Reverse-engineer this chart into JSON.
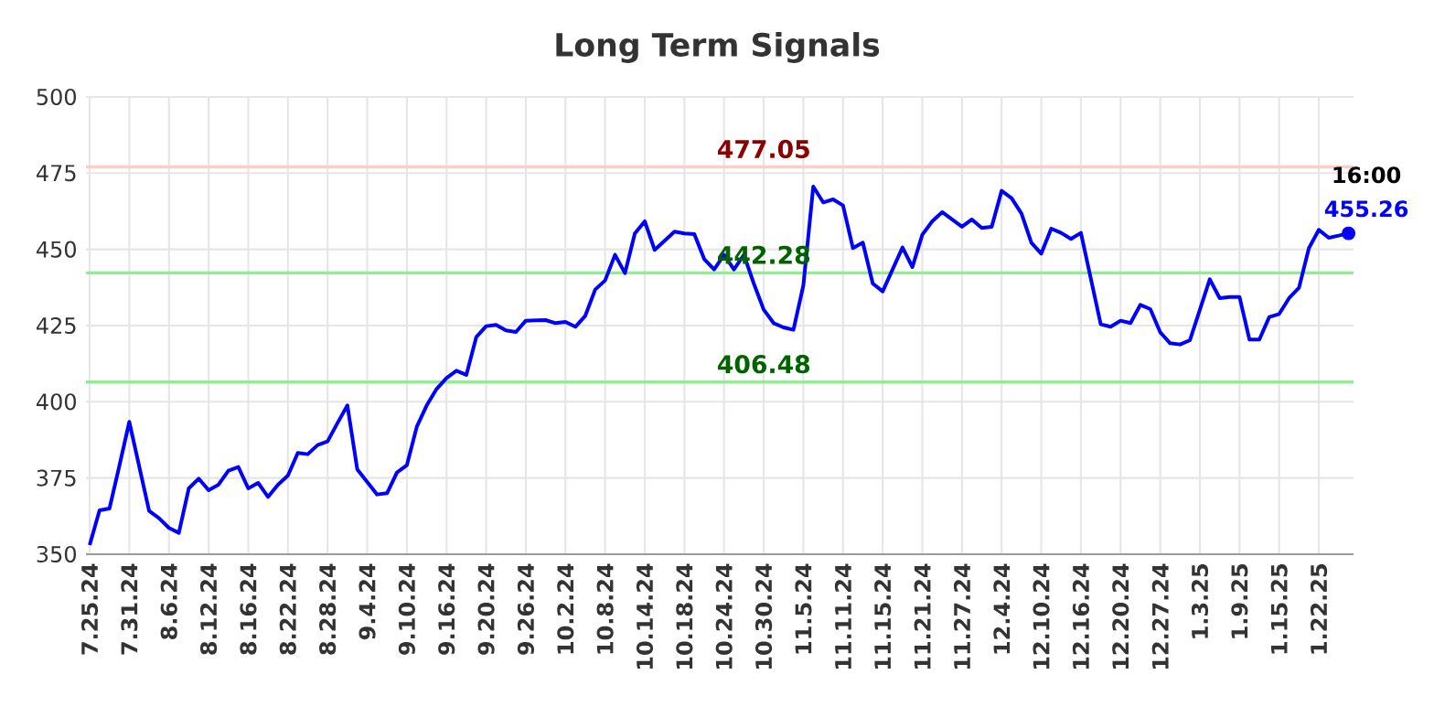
{
  "chart_data": {
    "type": "line",
    "title": "Long Term Signals",
    "categories": [
      "7.25.24",
      null,
      null,
      null,
      "7.31.24",
      null,
      null,
      null,
      "8.6.24",
      null,
      null,
      null,
      "8.12.24",
      null,
      null,
      null,
      "8.16.24",
      null,
      null,
      null,
      "8.22.24",
      null,
      null,
      null,
      "8.28.24",
      null,
      null,
      null,
      "9.4.24",
      null,
      null,
      null,
      "9.10.24",
      null,
      null,
      null,
      "9.16.24",
      null,
      null,
      null,
      "9.20.24",
      null,
      null,
      null,
      "9.26.24",
      null,
      null,
      null,
      "10.2.24",
      null,
      null,
      null,
      "10.8.24",
      null,
      null,
      null,
      "10.14.24",
      null,
      null,
      null,
      "10.18.24",
      null,
      null,
      null,
      "10.24.24",
      null,
      null,
      null,
      "10.30.24",
      null,
      null,
      null,
      "11.5.24",
      null,
      null,
      null,
      "11.11.24",
      null,
      null,
      null,
      "11.15.24",
      null,
      null,
      null,
      "11.21.24",
      null,
      null,
      null,
      "11.27.24",
      null,
      null,
      null,
      "12.4.24",
      null,
      null,
      null,
      "12.10.24",
      null,
      null,
      null,
      "12.16.24",
      null,
      null,
      null,
      "12.20.24",
      null,
      null,
      null,
      "12.27.24",
      null,
      null,
      null,
      "1.3.25",
      null,
      null,
      null,
      "1.9.25",
      null,
      null,
      null,
      "1.15.25",
      null,
      null,
      null,
      "1.22.25",
      null,
      null,
      null
    ],
    "series": [
      {
        "color": "#0000ff",
        "values": [
          353,
          364.4,
          365,
          379,
          393.4,
          378.8,
          364.2,
          361.8,
          358.6,
          357,
          371.6,
          374.8,
          371,
          372.8,
          377.4,
          378.6,
          371.6,
          373.4,
          368.8,
          372.8,
          375.8,
          383.2,
          382.8,
          385.8,
          387,
          393,
          398.8,
          377.8,
          373.7,
          369.6,
          370,
          376.8,
          379.2,
          391.8,
          398.8,
          404.2,
          407.8,
          410.2,
          408.8,
          421.2,
          424.8,
          425.2,
          423.4,
          422.9,
          426.6,
          426.7,
          426.8,
          425.8,
          426.2,
          424.6,
          428.2,
          436.8,
          439.8,
          448.2,
          442.2,
          455.2,
          459.2,
          449.8,
          452.8,
          455.8,
          455.2,
          455,
          446.8,
          443.4,
          448.2,
          443.4,
          448.2,
          438.8,
          430.2,
          425.8,
          424.4,
          423.6,
          438.2,
          470.6,
          465.4,
          466.4,
          464.4,
          450.4,
          452.2,
          438.8,
          436.2,
          443.4,
          450.6,
          444.2,
          454.8,
          459.2,
          462.2,
          459.8,
          457.4,
          459.8,
          457,
          457.4,
          469.2,
          466.8,
          461.8,
          452.2,
          448.6,
          456.8,
          455.4,
          453.4,
          455.4,
          440.4,
          425.4,
          424.6,
          426.6,
          425.8,
          431.8,
          430.4,
          422.8,
          419.2,
          418.8,
          420.2,
          430.2,
          440.2,
          434,
          434.4,
          434.4,
          420.4,
          420.4,
          427.8,
          428.8,
          434,
          437.4,
          450.4,
          456.4,
          453.8,
          454.5,
          455.26
        ],
        "value_labels": [
          null,
          null,
          null,
          null,
          null,
          null,
          null,
          null,
          null,
          null,
          null,
          null,
          null,
          null,
          null,
          null,
          null,
          null,
          null,
          null,
          null,
          null,
          null,
          null,
          null,
          null,
          null,
          null,
          null,
          null,
          null,
          null,
          null,
          null,
          null,
          null,
          null,
          null,
          null,
          null,
          null,
          null,
          null,
          null,
          null,
          null,
          null,
          null,
          null,
          null,
          null,
          null,
          null,
          null,
          null,
          null,
          null,
          null,
          null,
          null,
          null,
          null,
          null,
          null,
          null,
          null,
          null,
          null,
          null,
          null,
          null,
          null,
          null,
          null,
          null,
          null,
          null,
          null,
          null,
          null,
          null,
          null,
          null,
          null,
          null,
          null,
          null,
          null,
          null,
          null,
          null,
          null,
          null,
          null,
          null,
          null,
          null,
          null,
          null,
          null,
          null,
          null,
          null,
          null,
          null,
          null,
          null,
          null,
          null,
          null,
          null,
          null,
          null,
          null,
          null,
          null,
          null,
          null,
          null,
          null,
          null,
          null,
          null,
          null,
          null,
          null,
          null,
          "455.26"
        ]
      }
    ],
    "ylim": [
      350,
      500
    ],
    "yticks": [
      350,
      375,
      400,
      425,
      450,
      475,
      500
    ],
    "grid": true,
    "ref_lines": [
      {
        "axis": "y",
        "value": 477.05,
        "label": "477.05",
        "color": "#ffcccc"
      },
      {
        "axis": "y",
        "value": 442.28,
        "label": "442.28",
        "color": "#90ee90"
      },
      {
        "axis": "y",
        "value": 406.48,
        "label": "406.48",
        "color": "#90ee90"
      }
    ],
    "annotations": [
      "16:00"
    ]
  }
}
